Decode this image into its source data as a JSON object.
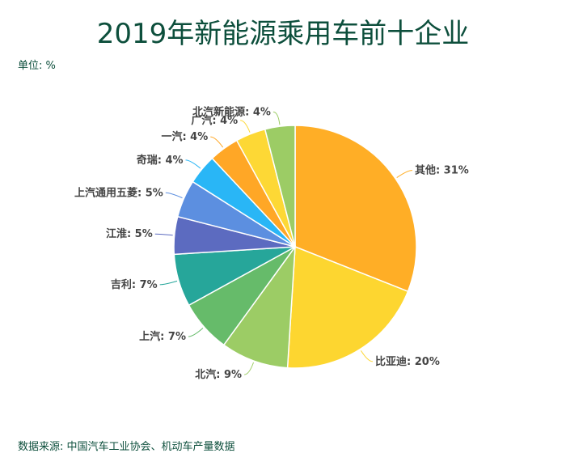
{
  "chart_data": {
    "type": "pie",
    "title": "2019年新能源乘用车前十企业",
    "unit_label": "单位: %",
    "source": "数据来源: 中国汽车工业协会、机动车产量数据",
    "start_angle": "12 o'clock, clockwise",
    "slices": [
      {
        "label": "其他",
        "value": 31,
        "text": "其他: 31%",
        "color": "#FFAE26"
      },
      {
        "label": "比亚迪",
        "value": 20,
        "text": "比亚迪: 20%",
        "color": "#FDD630"
      },
      {
        "label": "北汽",
        "value": 9,
        "text": "北汽: 9%",
        "color": "#9CCC65"
      },
      {
        "label": "上汽",
        "value": 7,
        "text": "上汽: 7%",
        "color": "#66BB6A"
      },
      {
        "label": "吉利",
        "value": 7,
        "text": "吉利: 7%",
        "color": "#26A69A"
      },
      {
        "label": "江淮",
        "value": 5,
        "text": "江淮: 5%",
        "color": "#5C6BC0"
      },
      {
        "label": "上汽通用五菱",
        "value": 5,
        "text": "上汽通用五菱: 5%",
        "color": "#5C8FE0"
      },
      {
        "label": "奇瑞",
        "value": 4,
        "text": "奇瑞: 4%",
        "color": "#29B6F6"
      },
      {
        "label": "一汽",
        "value": 4,
        "text": "一汽: 4%",
        "color": "#FFA726"
      },
      {
        "label": "广汽",
        "value": 4,
        "text": "广汽: 4%",
        "color": "#FDD835"
      },
      {
        "label": "北汽新能源",
        "value": 4,
        "text": "北汽新能源: 4%",
        "color": "#9CCC65"
      }
    ]
  }
}
